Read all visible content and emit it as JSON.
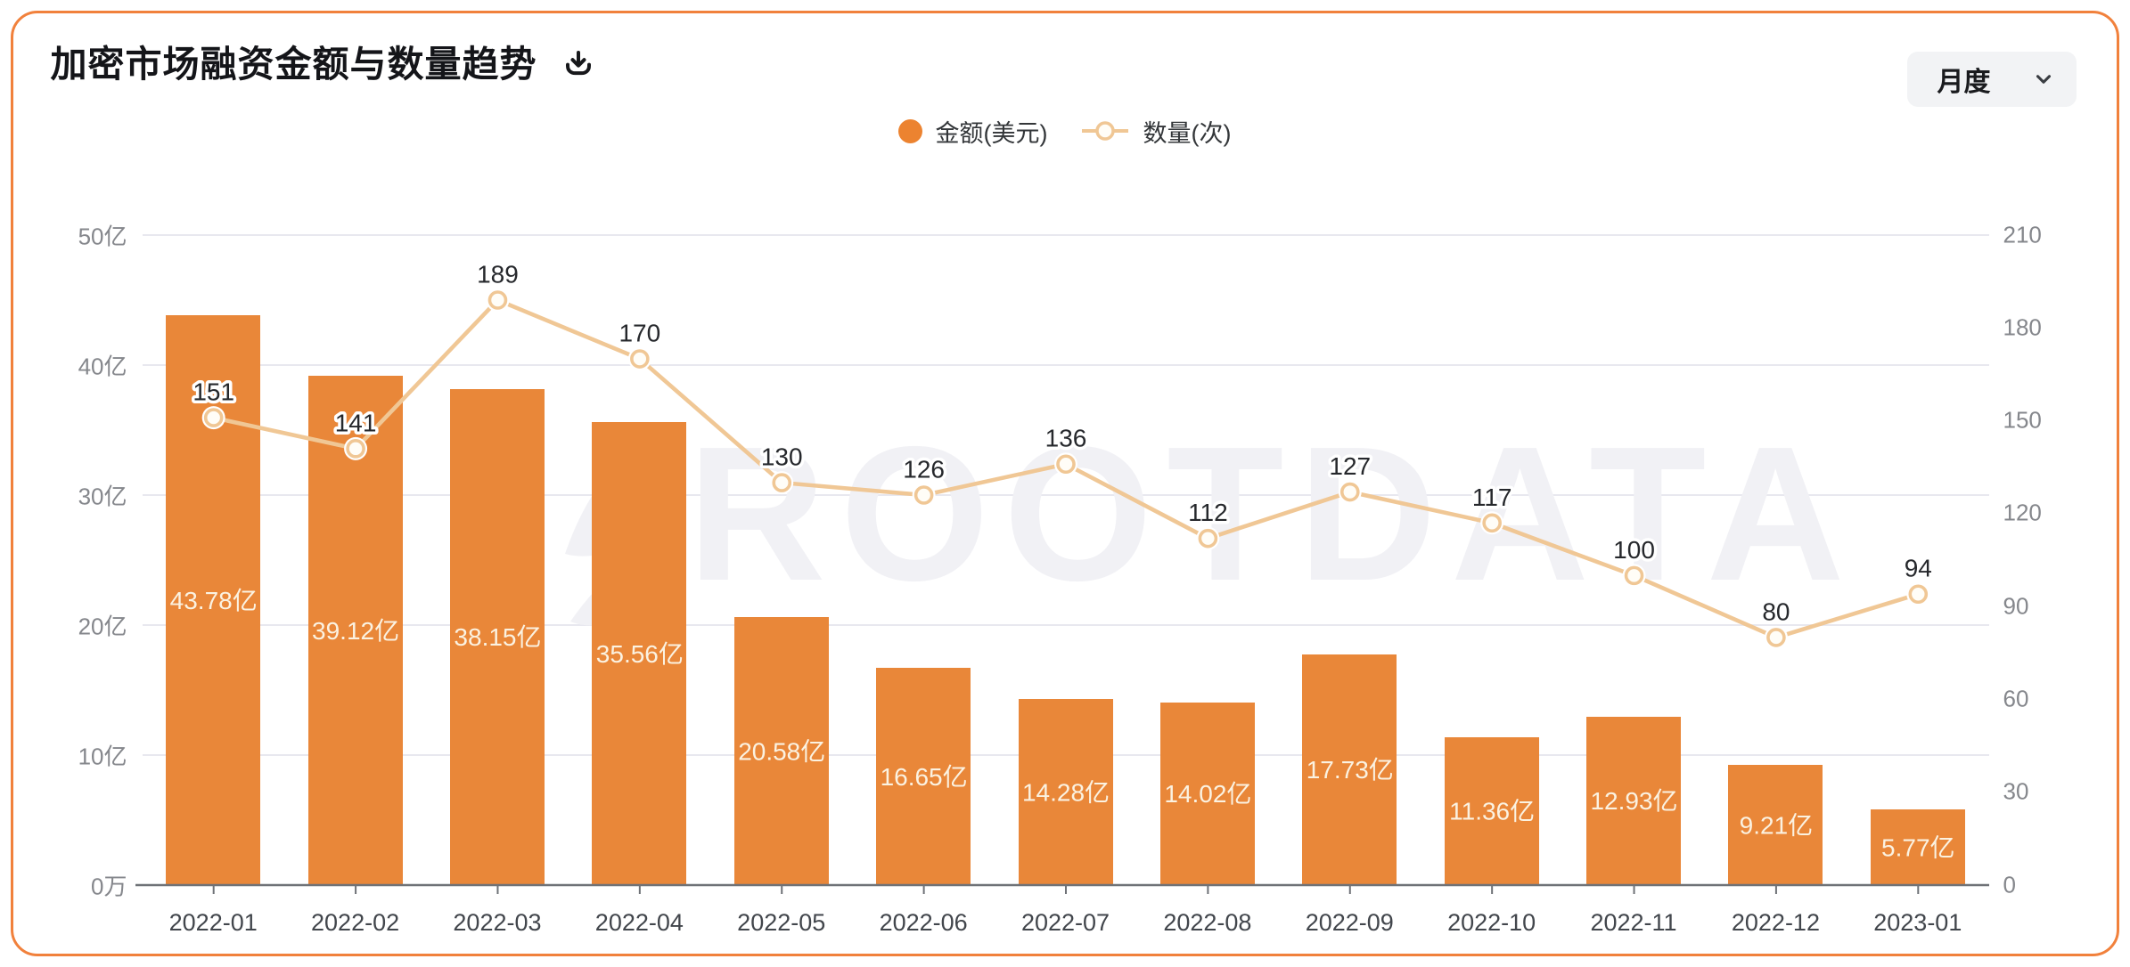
{
  "header": {
    "title": "加密市场融资金额与数量趋势",
    "period_selector": {
      "value": "月度"
    }
  },
  "legend": {
    "amount_label": "金额(美元)",
    "count_label": "数量(次)"
  },
  "watermark": "ROOTDATA",
  "colors": {
    "bar": "#E98739",
    "legend_dot": "#EC8330",
    "line": "#F0C795",
    "marker_fill": "#FFFDF7",
    "marker_halo": "#FFFFFF",
    "grid": "#E8E8EF",
    "axis": "#6F7277",
    "y_label": "#85878C",
    "x_label": "#42464C",
    "bar_label": "#FBF2E1",
    "point_label": "#26282C",
    "title": "#141519",
    "watermark": "#F1F1F5",
    "card_border": "#F1813C",
    "dropdown_bg": "#F2F3F5"
  },
  "chart_data": {
    "type": "combo-bar-line",
    "title": "加密市场融资金额与数量趋势",
    "categories": [
      "2022-01",
      "2022-02",
      "2022-03",
      "2022-04",
      "2022-05",
      "2022-06",
      "2022-07",
      "2022-08",
      "2022-09",
      "2022-10",
      "2022-11",
      "2022-12",
      "2023-01"
    ],
    "series": [
      {
        "name": "金额(美元)",
        "type": "bar",
        "y_axis": "left",
        "unit": "亿",
        "values": [
          43.78,
          39.12,
          38.15,
          35.56,
          20.58,
          16.65,
          14.28,
          14.02,
          17.73,
          11.36,
          12.93,
          9.21,
          5.77
        ],
        "value_labels": [
          "43.78亿",
          "39.12亿",
          "38.15亿",
          "35.56亿",
          "20.58亿",
          "16.65亿",
          "14.28亿",
          "14.02亿",
          "17.73亿",
          "11.36亿",
          "12.93亿",
          "9.21亿",
          "5.77亿"
        ]
      },
      {
        "name": "数量(次)",
        "type": "line",
        "y_axis": "right",
        "values": [
          151,
          141,
          189,
          170,
          130,
          126,
          136,
          112,
          127,
          117,
          100,
          80,
          94
        ]
      }
    ],
    "y_axis_left": {
      "labels": [
        "0万",
        "10亿",
        "20亿",
        "30亿",
        "40亿",
        "50亿"
      ],
      "min": 0,
      "max": 50
    },
    "y_axis_right": {
      "labels": [
        "0",
        "30",
        "60",
        "90",
        "120",
        "150",
        "180",
        "210"
      ],
      "min": 0,
      "max": 210
    },
    "grid": true,
    "legend_position": "top-center"
  }
}
